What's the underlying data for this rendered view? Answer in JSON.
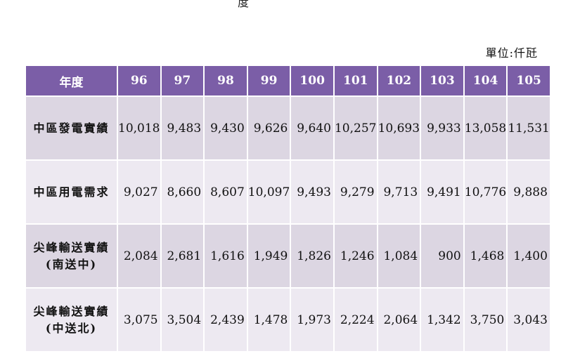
{
  "title_fragment": "度",
  "unit_note": "單位:仟瓩",
  "table": {
    "header_label": "年度",
    "years": [
      "96",
      "97",
      "98",
      "99",
      "100",
      "101",
      "102",
      "103",
      "104",
      "105"
    ],
    "rows": [
      {
        "label_lines": [
          "中區發電實績"
        ],
        "values": [
          "10,018",
          "9,483",
          "9,430",
          "9,626",
          "9,640",
          "10,257",
          "10,693",
          "9,933",
          "13,058",
          "11,531"
        ]
      },
      {
        "label_lines": [
          "中區用電需求"
        ],
        "values": [
          "9,027",
          "8,660",
          "8,607",
          "10,097",
          "9,493",
          "9,279",
          "9,713",
          "9,491",
          "10,776",
          "9,888"
        ]
      },
      {
        "label_lines": [
          "尖峰輸送實績",
          "(南送中)"
        ],
        "values": [
          "2,084",
          "2,681",
          "1,616",
          "1,949",
          "1,826",
          "1,246",
          "1,084",
          "900",
          "1,468",
          "1,400"
        ]
      },
      {
        "label_lines": [
          "尖峰輸送實績",
          "(中送北)"
        ],
        "values": [
          "3,075",
          "3,504",
          "2,439",
          "1,478",
          "1,973",
          "2,224",
          "2,064",
          "1,342",
          "3,750",
          "3,043"
        ]
      }
    ]
  }
}
